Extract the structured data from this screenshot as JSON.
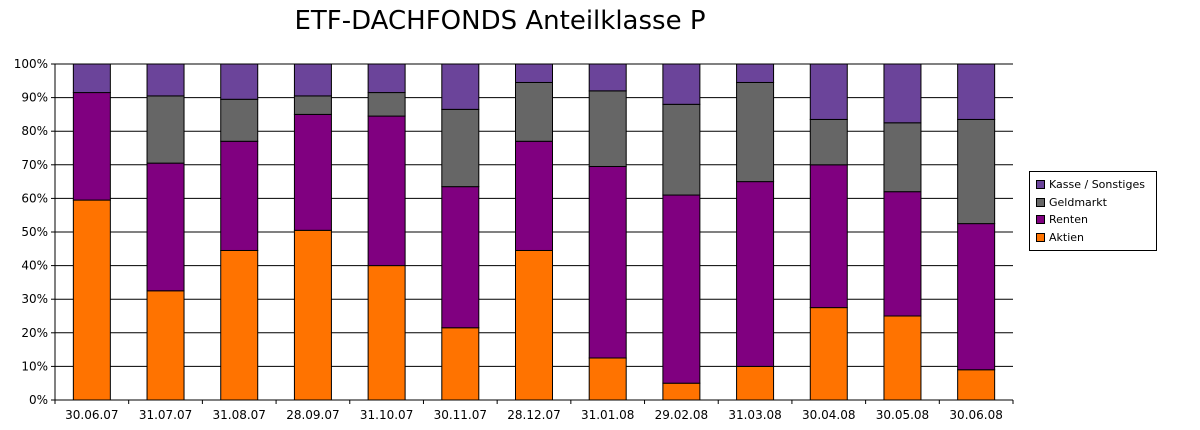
{
  "chart_data": {
    "type": "bar",
    "stacked": true,
    "percent": true,
    "title": "ETF-DACHFONDS Anteilklasse P",
    "categories": [
      "30.06.07",
      "31.07.07",
      "31.08.07",
      "28.09.07",
      "31.10.07",
      "30.11.07",
      "28.12.07",
      "31.01.08",
      "29.02.08",
      "31.03.08",
      "30.04.08",
      "30.05.08",
      "30.06.08"
    ],
    "ylim": [
      0,
      100
    ],
    "yticks": [
      "0%",
      "10%",
      "20%",
      "30%",
      "40%",
      "50%",
      "60%",
      "70%",
      "80%",
      "90%",
      "100%"
    ],
    "grid": true,
    "legend_position": "right",
    "series": [
      {
        "name": "Aktien",
        "color": "#ff7300",
        "values": [
          59.5,
          32.5,
          44.5,
          50.5,
          40,
          21.5,
          44.5,
          12.5,
          5,
          10,
          27.5,
          25,
          9
        ]
      },
      {
        "name": "Renten",
        "color": "#800080",
        "values": [
          32,
          38,
          32.5,
          34.5,
          44.5,
          42,
          32.5,
          57,
          56,
          55,
          42.5,
          37,
          43.5
        ]
      },
      {
        "name": "Geldmarkt",
        "color": "#666666",
        "values": [
          0,
          20,
          12.5,
          5.5,
          7,
          23,
          17.5,
          22.5,
          27,
          29.5,
          13.5,
          20.5,
          31
        ]
      },
      {
        "name": "Kasse / Sonstiges",
        "color": "#6b449a",
        "values": [
          8.5,
          9.5,
          10.5,
          9.5,
          8.5,
          13.5,
          5.5,
          8,
          12,
          5.5,
          16.5,
          17.5,
          16.5
        ]
      }
    ]
  }
}
